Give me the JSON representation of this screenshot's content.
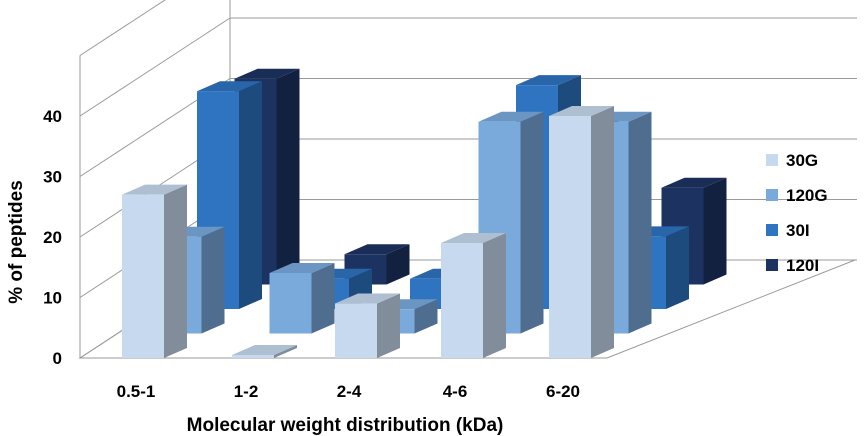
{
  "chart_data": {
    "type": "bar",
    "style": "3d-clustered",
    "title": "",
    "xlabel": "Molecular weight distribution (kDa)",
    "ylabel": "% of peptides",
    "ylim": [
      0,
      40
    ],
    "yticks": [
      0,
      10,
      20,
      30,
      40
    ],
    "grid": true,
    "legend_position": "right",
    "categories": [
      "0.5-1",
      "1-2",
      "2-4",
      "4-6",
      "6-20"
    ],
    "series": [
      {
        "name": "30G",
        "color": "#c6d9ef",
        "values": [
          27,
          0.5,
          9,
          19,
          40
        ]
      },
      {
        "name": "120G",
        "color": "#7aa9dc",
        "values": [
          16,
          10,
          4,
          35,
          35
        ]
      },
      {
        "name": "30I",
        "color": "#2e74c0",
        "values": [
          36,
          5,
          5,
          37,
          12
        ]
      },
      {
        "name": "120I",
        "color": "#1c3362",
        "values": [
          34,
          5,
          5,
          26,
          16
        ]
      }
    ]
  }
}
